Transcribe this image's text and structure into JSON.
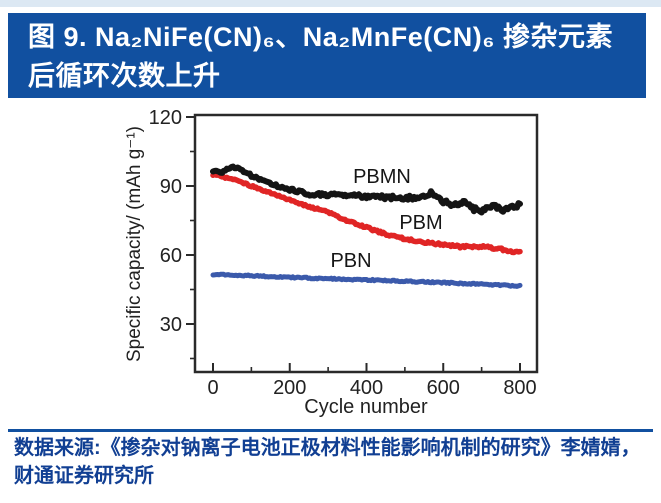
{
  "page": {
    "bg": "#ffffff",
    "top_strip_color": "#dce8f3"
  },
  "header": {
    "bg": "#1150a0",
    "text_color": "#ffffff",
    "line1": "图 9. Na₂NiFe(CN)₆、Na₂MnFe(CN)₆ 掺杂元素",
    "line2": "后循环次数上升"
  },
  "chart_data": {
    "type": "line",
    "title": "",
    "xlabel": "Cycle number",
    "ylabel": "Specific capacity/ (mAh g⁻¹)",
    "xlim": [
      -47,
      845
    ],
    "ylim": [
      9,
      121
    ],
    "x_ticks": [
      0,
      200,
      400,
      600,
      800
    ],
    "x_minor_ticks": [
      100,
      300,
      500,
      700
    ],
    "y_ticks": [
      30,
      60,
      90,
      120
    ],
    "y_minor_ticks": [
      15,
      45,
      75,
      105
    ],
    "grid": false,
    "legend_position": "inline-labels",
    "axis_color": "#2a2a2a",
    "series": [
      {
        "name": "PBN",
        "color": "#3b5aab",
        "x": [
          0,
          100,
          200,
          300,
          400,
          500,
          600,
          700,
          800
        ],
        "y": [
          51.5,
          51,
          50.3,
          49.7,
          49.2,
          48.6,
          48,
          47.3,
          46.5
        ]
      },
      {
        "name": "PBM",
        "color": "#e02525",
        "x": [
          0,
          50,
          100,
          150,
          200,
          250,
          300,
          350,
          400,
          450,
          500,
          550,
          600,
          650,
          700,
          750,
          800
        ],
        "y": [
          95,
          93,
          90,
          87,
          84,
          81,
          78.5,
          75,
          72,
          69,
          67,
          65.5,
          64.5,
          63.5,
          63.8,
          62.5,
          61
        ]
      },
      {
        "name": "PBMN",
        "color": "#141414",
        "x": [
          0,
          25,
          50,
          75,
          100,
          125,
          150,
          175,
          200,
          225,
          250,
          300,
          350,
          400,
          450,
          500,
          540,
          570,
          600,
          630,
          650,
          680,
          700,
          730,
          760,
          780,
          800
        ],
        "y": [
          96.5,
          96,
          98.5,
          97,
          94.5,
          92.5,
          91,
          89.5,
          88.5,
          87.5,
          86.5,
          86,
          86,
          85.5,
          85,
          85,
          84.5,
          87.5,
          83.5,
          81.5,
          83,
          80,
          79.5,
          82,
          79.5,
          80.5,
          81.5
        ]
      }
    ]
  },
  "footer": {
    "rule_color": "#1150a0",
    "text_color": "#113f93",
    "line1": "数据来源:《掺杂对钠离子电池正极材料性能影响机制的研究》李婧婧，",
    "line2": "财通证券研究所"
  }
}
